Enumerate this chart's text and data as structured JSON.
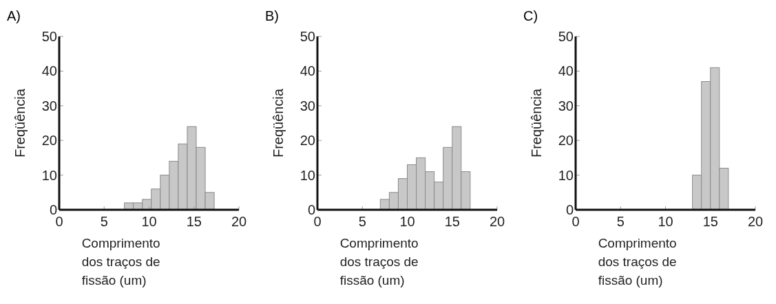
{
  "chart_data": [
    {
      "type": "histogram",
      "title": "A)",
      "xlabel": "Comprimento dos traços de fissão (um)",
      "ylabel": "Freqüência",
      "bins": [
        7.25,
        8.25,
        9.25,
        10.25,
        11.25,
        12.25,
        13.25,
        14.25,
        15.25,
        16.25,
        17.25
      ],
      "values": [
        2,
        2,
        3,
        6,
        10,
        14,
        19,
        24,
        18,
        5
      ],
      "color": "#c8c8c8",
      "xlim": [
        0,
        20
      ],
      "xticks": [
        0,
        5,
        10,
        15,
        20
      ],
      "ylim": [
        0,
        50
      ],
      "yticks": [
        0,
        10,
        20,
        30,
        40,
        50
      ]
    },
    {
      "type": "histogram",
      "title": "B)",
      "xlabel": "Comprimento dos traços de fissão (um)",
      "ylabel": "Freqüência",
      "bins": [
        7,
        8,
        9,
        10,
        11,
        12,
        13,
        14,
        15,
        16,
        17
      ],
      "values": [
        3,
        5,
        9,
        13,
        15,
        11,
        8,
        18,
        24,
        11
      ],
      "color": "#c8c8c8",
      "xlim": [
        0,
        20
      ],
      "xticks": [
        0,
        5,
        10,
        15,
        20
      ],
      "ylim": [
        0,
        50
      ],
      "yticks": [
        0,
        10,
        20,
        30,
        40,
        50
      ]
    },
    {
      "type": "histogram",
      "title": "C)",
      "xlabel": "Comprimento dos traços de fissão (um)",
      "ylabel": "Freqüência",
      "bins": [
        13,
        14,
        15,
        16,
        17
      ],
      "values": [
        10,
        37,
        41,
        12
      ],
      "color": "#c8c8c8",
      "xlim": [
        0,
        20
      ],
      "xticks": [
        0,
        5,
        10,
        15,
        20
      ],
      "ylim": [
        0,
        50
      ],
      "yticks": [
        0,
        10,
        20,
        30,
        40,
        50
      ]
    }
  ]
}
